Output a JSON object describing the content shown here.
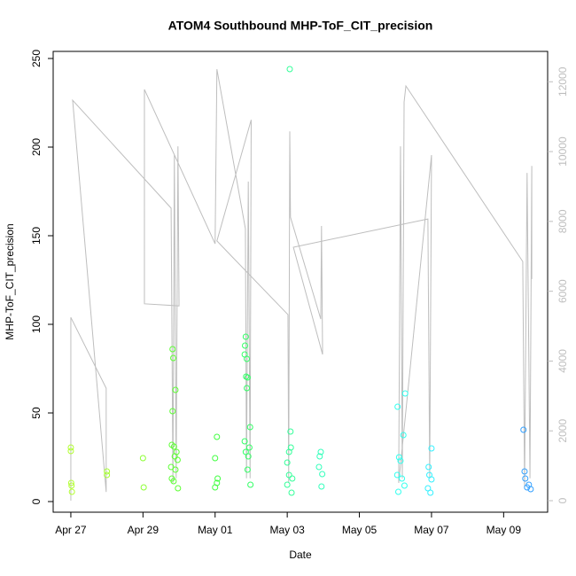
{
  "chart_data": {
    "type": "scatter",
    "title": "ATOM4 Southbound MHP-ToF_CIT_precision",
    "x_label": "Date",
    "y_label": "MHP-ToF_CIT_precision",
    "xlim": [
      26.51,
      40.22
    ],
    "ylim": [
      -6,
      254
    ],
    "y2lim": [
      -330,
      12870
    ],
    "xticks": [
      {
        "value": 27,
        "label": "Apr 27"
      },
      {
        "value": 29,
        "label": "Apr 29"
      },
      {
        "value": 31,
        "label": "May 01"
      },
      {
        "value": 33,
        "label": "May 03"
      },
      {
        "value": 35,
        "label": "May 05"
      },
      {
        "value": 37,
        "label": "May 07"
      },
      {
        "value": 39,
        "label": "May 09"
      }
    ],
    "yticks": [
      0,
      50,
      100,
      150,
      200,
      250
    ],
    "y2ticks": [
      0,
      2000,
      4000,
      6000,
      8000,
      10000,
      12000
    ],
    "series": [
      {
        "type": "line",
        "axis": "y2",
        "color": "#bebebe",
        "x": [
          27.0,
          27.0,
          27.98,
          27.98,
          27.05,
          29.78,
          29.83,
          29.87,
          29.92,
          29.97,
          30.0,
          29.04,
          29.04,
          31.0,
          31.05,
          31.84,
          31.87,
          31.92,
          31.97,
          32.0,
          31.05,
          33.02,
          33.04,
          33.07,
          33.09,
          33.93,
          33.95,
          33.98,
          33.17,
          36.9,
          36.95,
          37.0,
          36.09,
          36.14,
          36.19,
          36.24,
          36.29,
          39.53,
          39.58,
          39.65,
          39.73,
          39.78,
          39.78
        ],
        "values": [
          0,
          5250,
          3220,
          250,
          11470,
          8380,
          510,
          9900,
          640,
          10150,
          5580,
          5640,
          11780,
          7360,
          12360,
          7790,
          640,
          9140,
          640,
          10910,
          7440,
          5330,
          510,
          10580,
          8120,
          5200,
          7870,
          4190,
          7260,
          8070,
          640,
          9900,
          510,
          10150,
          640,
          11420,
          11880,
          6850,
          380,
          9390,
          640,
          9590,
          6350
        ]
      },
      {
        "type": "scatter",
        "color": "#b3ff33",
        "x": [
          27.0,
          27.0,
          27.01,
          27.02,
          27.03
        ],
        "values": [
          30.5,
          28.5,
          10.5,
          9,
          5.5
        ]
      },
      {
        "type": "scatter",
        "color": "#a6ff33",
        "x": [
          28.0,
          28.0
        ],
        "values": [
          17,
          15
        ]
      },
      {
        "type": "scatter",
        "color": "#8cff33",
        "x": [
          29.0,
          29.02
        ],
        "values": [
          24.5,
          8
        ]
      },
      {
        "type": "scatter",
        "color": "#5cff33",
        "x": [
          29.82,
          29.84,
          29.9,
          29.82,
          29.8,
          29.86,
          29.93,
          29.88,
          29.96,
          29.78,
          29.9,
          29.8,
          29.85,
          29.97
        ],
        "values": [
          86,
          81,
          63,
          51,
          32,
          31,
          28,
          25.5,
          23.5,
          19.5,
          18,
          13,
          11.5,
          7.5
        ]
      },
      {
        "type": "scatter",
        "color": "#40ff40",
        "x": [
          31.05,
          31.0,
          31.07,
          31.05,
          31.0
        ],
        "values": [
          36.5,
          24.5,
          13,
          10.5,
          8
        ]
      },
      {
        "type": "scatter",
        "color": "#33ff66",
        "x": [
          31.85,
          31.83,
          31.82,
          31.88,
          31.86,
          31.9,
          31.88,
          31.97,
          31.82,
          31.95,
          31.85,
          31.92,
          31.9,
          31.98
        ],
        "values": [
          93,
          88,
          83,
          80.5,
          70.5,
          70,
          64,
          42,
          34,
          30.5,
          28,
          25.5,
          18,
          9.5
        ]
      },
      {
        "type": "scatter",
        "color": "#33ff99",
        "x": [
          33.07,
          33.09,
          33.1,
          33.05,
          33.0,
          33.05,
          33.14,
          33.0,
          33.12
        ],
        "values": [
          244,
          39.5,
          30.5,
          28,
          22,
          15,
          13,
          9.5,
          5
        ]
      },
      {
        "type": "scatter",
        "color": "#33ffbb",
        "x": [
          33.93,
          33.9,
          33.88,
          33.97,
          33.95
        ],
        "values": [
          28,
          25.5,
          19.5,
          15.5,
          8.5
        ]
      },
      {
        "type": "scatter",
        "color": "#33ffee",
        "x": [
          36.27,
          36.06,
          36.22,
          36.1,
          36.14,
          36.05,
          36.18,
          36.25,
          36.08
        ],
        "values": [
          61,
          53.5,
          37.5,
          25,
          23,
          15,
          13,
          9,
          5.5
        ]
      },
      {
        "type": "scatter",
        "color": "#33f0ff",
        "x": [
          37.0,
          36.92,
          36.94,
          37.0,
          36.9,
          36.97
        ],
        "values": [
          30,
          19.5,
          15,
          12.5,
          7.5,
          5
        ]
      },
      {
        "type": "scatter",
        "color": "#33a0ff",
        "x": [
          39.55,
          39.58,
          39.6,
          39.7,
          39.65,
          39.75
        ],
        "values": [
          40.5,
          17,
          13,
          9.5,
          8,
          7
        ]
      }
    ]
  }
}
